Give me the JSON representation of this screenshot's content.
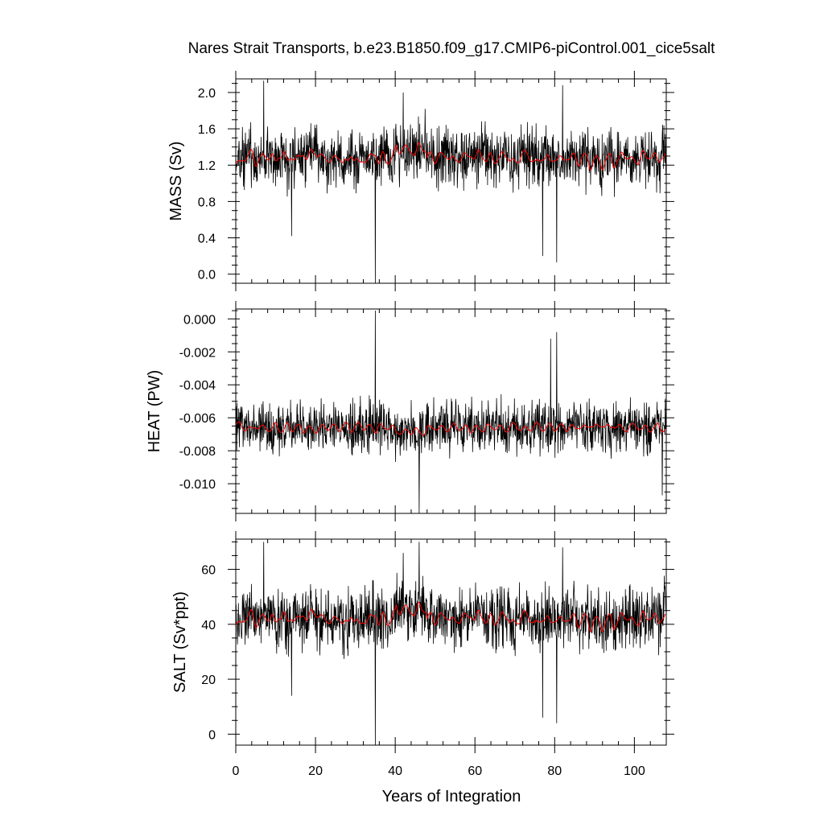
{
  "title": "Nares Strait Transports, b.e23.B1850.f09_g17.CMIP6-piControl.001_cice5salt",
  "xlabel": "Years of Integration",
  "colors": {
    "raw": "#000000",
    "smooth": "#ff0000",
    "background": "#ffffff"
  },
  "chart_data": [
    {
      "type": "line",
      "ylabel": "MASS (Sv)",
      "xlim": [
        0,
        108
      ],
      "ylim": [
        -0.1,
        2.15
      ],
      "yticks": [
        "2.0",
        "1.6",
        "1.2",
        "0.8",
        "0.4",
        "0.0"
      ],
      "xticks": [
        "0",
        "20",
        "40",
        "60",
        "80",
        "100"
      ],
      "series": [
        {
          "role": "monthly",
          "color": "#000000",
          "mean": 1.28,
          "spread": 0.22
        },
        {
          "role": "smoothed",
          "color": "#ff0000",
          "mean": 1.28,
          "spread": 0.07
        }
      ],
      "notable_points": [
        {
          "x": 7,
          "y": 2.13
        },
        {
          "x": 14,
          "y": 0.42
        },
        {
          "x": 35,
          "y": -0.1
        },
        {
          "x": 42,
          "y": 2.0
        },
        {
          "x": 77,
          "y": 0.2
        },
        {
          "x": 80.5,
          "y": 0.13
        },
        {
          "x": 82,
          "y": 2.08
        }
      ],
      "grid": false
    },
    {
      "type": "line",
      "ylabel": "HEAT (PW)",
      "xlim": [
        0,
        108
      ],
      "ylim": [
        -0.0118,
        0.0006
      ],
      "yticks": [
        "0.000",
        "-0.002",
        "-0.004",
        "-0.006",
        "-0.008",
        "-0.010"
      ],
      "xticks": [
        "0",
        "20",
        "40",
        "60",
        "80",
        "100"
      ],
      "series": [
        {
          "role": "monthly",
          "color": "#000000",
          "mean": -0.0066,
          "spread": 0.0011
        },
        {
          "role": "smoothed",
          "color": "#ff0000",
          "mean": -0.0066,
          "spread": 0.0003
        }
      ],
      "notable_points": [
        {
          "x": 35,
          "y": 0.0005
        },
        {
          "x": 46,
          "y": -0.0118
        },
        {
          "x": 79,
          "y": -0.0012
        },
        {
          "x": 80.5,
          "y": -0.0008
        },
        {
          "x": 107,
          "y": -0.0107
        }
      ],
      "grid": false
    },
    {
      "type": "line",
      "ylabel": "SALT (Sv*ppt)",
      "xlim": [
        0,
        108
      ],
      "ylim": [
        -4,
        71
      ],
      "yticks": [
        "60",
        "40",
        "20",
        "0"
      ],
      "xticks": [
        "0",
        "20",
        "40",
        "60",
        "80",
        "100"
      ],
      "series": [
        {
          "role": "monthly",
          "color": "#000000",
          "mean": 42,
          "spread": 7.5
        },
        {
          "role": "smoothed",
          "color": "#ff0000",
          "mean": 42,
          "spread": 2.5
        }
      ],
      "notable_points": [
        {
          "x": 7,
          "y": 70
        },
        {
          "x": 14,
          "y": 14
        },
        {
          "x": 35,
          "y": -4
        },
        {
          "x": 42,
          "y": 66
        },
        {
          "x": 46,
          "y": 70
        },
        {
          "x": 77,
          "y": 6
        },
        {
          "x": 80.5,
          "y": 4
        },
        {
          "x": 82,
          "y": 68
        }
      ],
      "grid": false
    }
  ]
}
